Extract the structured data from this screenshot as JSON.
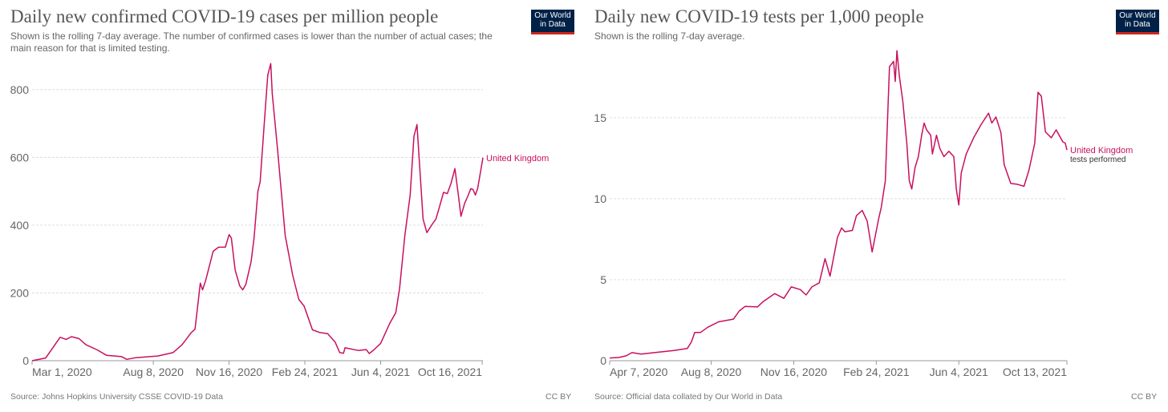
{
  "colors": {
    "line": "#c8105f",
    "grid": "#ddd",
    "axis": "#999"
  },
  "logo": {
    "line1": "Our World",
    "line2": "in Data"
  },
  "chart_data": [
    {
      "type": "line",
      "title": "Daily new confirmed COVID-19 cases per million people",
      "subtitle": "Shown is the rolling 7-day average. The number of confirmed cases is lower than the number of actual cases; the main reason for that is limited testing.",
      "source": "Source: Johns Hopkins University CSSE COVID-19 Data",
      "license": "CC BY",
      "x_unit": "days since Mar 1, 2020",
      "xlim": [
        0,
        595
      ],
      "ylim": [
        0,
        880
      ],
      "yticks": [
        {
          "v": 0,
          "label": "0"
        },
        {
          "v": 200,
          "label": "200"
        },
        {
          "v": 400,
          "label": "400"
        },
        {
          "v": 600,
          "label": "600"
        },
        {
          "v": 800,
          "label": "800"
        }
      ],
      "xticks": [
        {
          "v": 0,
          "label": "Mar 1, 2020"
        },
        {
          "v": 160,
          "label": "Aug 8, 2020"
        },
        {
          "v": 260,
          "label": "Nov 16, 2020"
        },
        {
          "v": 360,
          "label": "Feb 24, 2021"
        },
        {
          "v": 460,
          "label": "Jun 4, 2021"
        },
        {
          "v": 594,
          "label": "Oct 16, 2021"
        }
      ],
      "grid": true,
      "series": [
        {
          "name": "United Kingdom",
          "points": [
            [
              0,
              0
            ],
            [
              18,
              8
            ],
            [
              37,
              69
            ],
            [
              45,
              63
            ],
            [
              52,
              71
            ],
            [
              62,
              65
            ],
            [
              71,
              47
            ],
            [
              86,
              32
            ],
            [
              98,
              16
            ],
            [
              118,
              12
            ],
            [
              125,
              4
            ],
            [
              137,
              9
            ],
            [
              166,
              14
            ],
            [
              186,
              24
            ],
            [
              198,
              47
            ],
            [
              210,
              83
            ],
            [
              215,
              93
            ],
            [
              222,
              229
            ],
            [
              225,
              209
            ],
            [
              229,
              236
            ],
            [
              239,
              323
            ],
            [
              246,
              335
            ],
            [
              255,
              335
            ],
            [
              260,
              372
            ],
            [
              263,
              362
            ],
            [
              268,
              268
            ],
            [
              274,
              221
            ],
            [
              278,
              209
            ],
            [
              282,
              225
            ],
            [
              289,
              292
            ],
            [
              293,
              362
            ],
            [
              298,
              500
            ],
            [
              301,
              528
            ],
            [
              306,
              686
            ],
            [
              311,
              843
            ],
            [
              315,
              877
            ],
            [
              317,
              788
            ],
            [
              324,
              623
            ],
            [
              334,
              370
            ],
            [
              344,
              252
            ],
            [
              352,
              181
            ],
            [
              359,
              161
            ],
            [
              370,
              91
            ],
            [
              380,
              83
            ],
            [
              390,
              80
            ],
            [
              400,
              55
            ],
            [
              406,
              24
            ],
            [
              411,
              22
            ],
            [
              413,
              38
            ],
            [
              431,
              30
            ],
            [
              441,
              33
            ],
            [
              445,
              21
            ],
            [
              451,
              32
            ],
            [
              460,
              51
            ],
            [
              472,
              110
            ],
            [
              480,
              142
            ],
            [
              485,
              213
            ],
            [
              492,
              370
            ],
            [
              499,
              489
            ],
            [
              504,
              662
            ],
            [
              508,
              697
            ],
            [
              511,
              590
            ],
            [
              516,
              418
            ],
            [
              521,
              378
            ],
            [
              529,
              406
            ],
            [
              533,
              418
            ],
            [
              538,
              457
            ],
            [
              543,
              497
            ],
            [
              548,
              493
            ],
            [
              553,
              524
            ],
            [
              558,
              567
            ],
            [
              563,
              481
            ],
            [
              566,
              426
            ],
            [
              571,
              465
            ],
            [
              575,
              485
            ],
            [
              579,
              508
            ],
            [
              582,
              505
            ],
            [
              585,
              489
            ],
            [
              588,
              508
            ],
            [
              592,
              560
            ],
            [
              595,
              599
            ]
          ]
        }
      ]
    },
    {
      "type": "line",
      "title": "Daily new COVID-19 tests per 1,000 people",
      "subtitle": "Shown is the rolling 7-day average.",
      "source": "Source: Official data collated by Our World in Data",
      "license": "CC BY",
      "x_unit": "days since Apr 7, 2020",
      "xlim": [
        0,
        554
      ],
      "ylim": [
        0,
        19.2
      ],
      "yticks": [
        {
          "v": 0,
          "label": "0"
        },
        {
          "v": 5,
          "label": "5"
        },
        {
          "v": 10,
          "label": "10"
        },
        {
          "v": 15,
          "label": "15"
        }
      ],
      "xticks": [
        {
          "v": 0,
          "label": "Apr 7, 2020"
        },
        {
          "v": 123,
          "label": "Aug 8, 2020"
        },
        {
          "v": 223,
          "label": "Nov 16, 2020"
        },
        {
          "v": 323,
          "label": "Feb 24, 2021"
        },
        {
          "v": 423,
          "label": "Jun 4, 2021"
        },
        {
          "v": 554,
          "label": "Oct 13, 2021"
        }
      ],
      "grid": true,
      "series": [
        {
          "name": "United Kingdom",
          "sublabel": "tests performed",
          "points": [
            [
              0,
              0.17
            ],
            [
              11,
              0.2
            ],
            [
              20,
              0.3
            ],
            [
              27,
              0.5
            ],
            [
              38,
              0.41
            ],
            [
              60,
              0.53
            ],
            [
              78,
              0.63
            ],
            [
              94,
              0.75
            ],
            [
              99,
              1.16
            ],
            [
              103,
              1.74
            ],
            [
              110,
              1.74
            ],
            [
              119,
              2.07
            ],
            [
              132,
              2.4
            ],
            [
              150,
              2.57
            ],
            [
              157,
              3.07
            ],
            [
              164,
              3.35
            ],
            [
              179,
              3.32
            ],
            [
              186,
              3.65
            ],
            [
              200,
              4.14
            ],
            [
              211,
              3.85
            ],
            [
              220,
              4.56
            ],
            [
              231,
              4.39
            ],
            [
              238,
              4.06
            ],
            [
              245,
              4.56
            ],
            [
              254,
              4.81
            ],
            [
              261,
              6.3
            ],
            [
              267,
              5.22
            ],
            [
              276,
              7.62
            ],
            [
              281,
              8.2
            ],
            [
              285,
              7.96
            ],
            [
              294,
              8.04
            ],
            [
              299,
              8.95
            ],
            [
              306,
              9.28
            ],
            [
              312,
              8.62
            ],
            [
              318,
              6.71
            ],
            [
              326,
              8.79
            ],
            [
              329,
              9.45
            ],
            [
              334,
              11.1
            ],
            [
              339,
              18.15
            ],
            [
              344,
              18.48
            ],
            [
              346,
              17.24
            ],
            [
              348,
              19.14
            ],
            [
              351,
              17.57
            ],
            [
              355,
              16.08
            ],
            [
              360,
              13.43
            ],
            [
              363,
              11.1
            ],
            [
              366,
              10.6
            ],
            [
              370,
              11.93
            ],
            [
              374,
              12.6
            ],
            [
              378,
              13.92
            ],
            [
              381,
              14.67
            ],
            [
              384,
              14.25
            ],
            [
              389,
              13.92
            ],
            [
              391,
              12.76
            ],
            [
              396,
              13.92
            ],
            [
              400,
              13.1
            ],
            [
              405,
              12.6
            ],
            [
              411,
              12.93
            ],
            [
              417,
              12.6
            ],
            [
              420,
              10.6
            ],
            [
              423,
              9.61
            ],
            [
              426,
              11.6
            ],
            [
              432,
              12.76
            ],
            [
              441,
              13.76
            ],
            [
              450,
              14.58
            ],
            [
              459,
              15.28
            ],
            [
              463,
              14.67
            ],
            [
              468,
              15.05
            ],
            [
              474,
              14.09
            ],
            [
              478,
              12.1
            ],
            [
              486,
              10.94
            ],
            [
              493,
              10.9
            ],
            [
              502,
              10.77
            ],
            [
              508,
              11.77
            ],
            [
              515,
              13.43
            ],
            [
              519,
              16.57
            ],
            [
              523,
              16.33
            ],
            [
              528,
              14.13
            ],
            [
              535,
              13.76
            ],
            [
              541,
              14.25
            ],
            [
              549,
              13.51
            ],
            [
              552,
              13.43
            ],
            [
              554,
              13.01
            ]
          ]
        }
      ]
    }
  ]
}
